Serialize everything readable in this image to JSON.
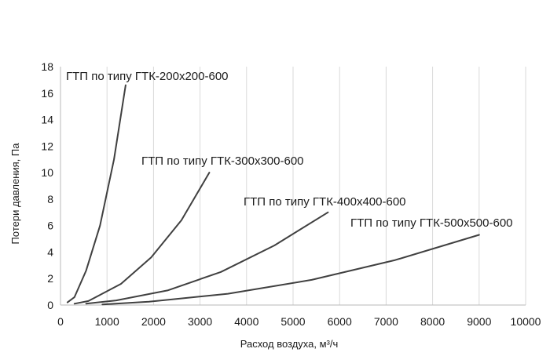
{
  "chart_data": {
    "type": "line",
    "title": "",
    "xlabel": "Расход воздуха, м³/ч",
    "ylabel": "Потери давления, Па",
    "xlim": [
      0,
      10000
    ],
    "ylim": [
      0,
      18
    ],
    "x_ticks": [
      0,
      1000,
      2000,
      3000,
      4000,
      5000,
      6000,
      7000,
      8000,
      9000,
      10000
    ],
    "y_ticks": [
      0,
      2,
      4,
      6,
      8,
      10,
      12,
      14,
      16,
      18
    ],
    "grid": {
      "x": true,
      "y": false
    },
    "legend": "none",
    "colors": {
      "line": "#404040",
      "grid": "#d9d9d9",
      "axis": "#b8b8b8",
      "text": "#1a1a1a"
    },
    "series": [
      {
        "name": "ГТП по типу ГТК-200х200-600",
        "x": [
          150,
          300,
          550,
          850,
          1150,
          1400
        ],
        "y": [
          0.2,
          0.6,
          2.6,
          6.0,
          11.0,
          16.6
        ]
      },
      {
        "name": "ГТП по типу ГТК-300х300-600",
        "x": [
          300,
          600,
          1300,
          1950,
          2600,
          3200
        ],
        "y": [
          0.1,
          0.3,
          1.6,
          3.6,
          6.4,
          10.0
        ]
      },
      {
        "name": "ГТП по типу ГТК-400х400-600",
        "x": [
          550,
          1200,
          2300,
          3450,
          4600,
          5750
        ],
        "y": [
          0.1,
          0.35,
          1.1,
          2.5,
          4.5,
          7.0
        ]
      },
      {
        "name": "ГТП по типу ГТК-500х500-600",
        "x": [
          900,
          1900,
          3600,
          5400,
          7200,
          9000
        ],
        "y": [
          0.05,
          0.25,
          0.85,
          1.9,
          3.4,
          5.3
        ]
      }
    ]
  }
}
